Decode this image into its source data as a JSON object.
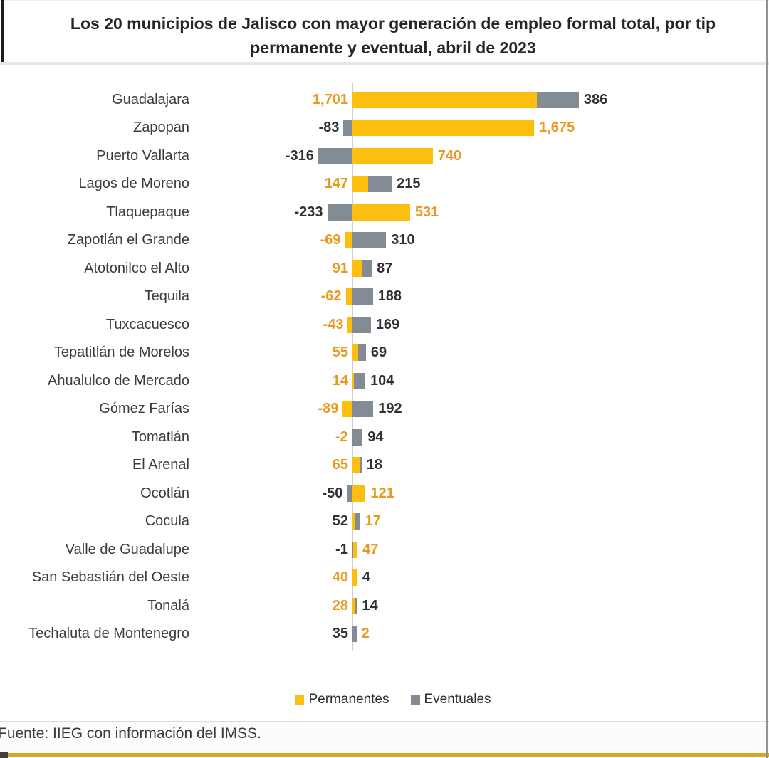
{
  "title": {
    "line1": "Los 20 municipios de Jalisco con mayor generación de empleo formal total, por tip",
    "line2": "permanente y eventual, abril de 2023"
  },
  "colors": {
    "permanentes": "#fcbf0f",
    "eventuales": "#838b94",
    "label_permanentes": "#e9991d",
    "label_eventuales": "#303036"
  },
  "legend": [
    {
      "label": "Permanentes",
      "series": "P",
      "color": "#fcbf0f"
    },
    {
      "label": "Eventuales",
      "series": "E",
      "color": "#838b94"
    }
  ],
  "footer": {
    "source": "Fuente: IIEG con información del IMSS."
  },
  "chart_data": {
    "type": "bar",
    "orientation": "horizontal",
    "stacked": true,
    "grid": false,
    "legend_position": "bottom",
    "series_names": [
      "Permanentes",
      "Eventuales"
    ],
    "rows": [
      {
        "name": "Guadalajara",
        "permanentes": 1701,
        "eventuales": 386,
        "left": {
          "text": "1,701",
          "series": "P"
        },
        "right": {
          "text": "386",
          "series": "E"
        }
      },
      {
        "name": "Zapopan",
        "permanentes": 1675,
        "eventuales": -83,
        "left": {
          "text": "-83",
          "series": "E"
        },
        "right": {
          "text": "1,675",
          "series": "P"
        }
      },
      {
        "name": "Puerto Vallarta",
        "permanentes": 740,
        "eventuales": -316,
        "left": {
          "text": "-316",
          "series": "E"
        },
        "right": {
          "text": "740",
          "series": "P"
        }
      },
      {
        "name": "Lagos de Moreno",
        "permanentes": 147,
        "eventuales": 215,
        "left": {
          "text": "147",
          "series": "P"
        },
        "right": {
          "text": "215",
          "series": "E"
        }
      },
      {
        "name": "Tlaquepaque",
        "permanentes": 531,
        "eventuales": -233,
        "left": {
          "text": "-233",
          "series": "E"
        },
        "right": {
          "text": "531",
          "series": "P"
        }
      },
      {
        "name": "Zapotlán el Grande",
        "permanentes": -69,
        "eventuales": 310,
        "left": {
          "text": "-69",
          "series": "P"
        },
        "right": {
          "text": "310",
          "series": "E"
        }
      },
      {
        "name": "Atotonilco el Alto",
        "permanentes": 91,
        "eventuales": 87,
        "left": {
          "text": "91",
          "series": "P"
        },
        "right": {
          "text": "87",
          "series": "E"
        }
      },
      {
        "name": "Tequila",
        "permanentes": -62,
        "eventuales": 188,
        "left": {
          "text": "-62",
          "series": "P"
        },
        "right": {
          "text": "188",
          "series": "E"
        }
      },
      {
        "name": "Tuxcacuesco",
        "permanentes": -43,
        "eventuales": 169,
        "left": {
          "text": "-43",
          "series": "P"
        },
        "right": {
          "text": "169",
          "series": "E"
        }
      },
      {
        "name": "Tepatitlán de Morelos",
        "permanentes": 55,
        "eventuales": 69,
        "left": {
          "text": "55",
          "series": "P"
        },
        "right": {
          "text": "69",
          "series": "E"
        }
      },
      {
        "name": "Ahualulco de Mercado",
        "permanentes": 14,
        "eventuales": 104,
        "left": {
          "text": "14",
          "series": "P"
        },
        "right": {
          "text": "104",
          "series": "E"
        }
      },
      {
        "name": "Gómez Farías",
        "permanentes": -89,
        "eventuales": 192,
        "left": {
          "text": "-89",
          "series": "P"
        },
        "right": {
          "text": "192",
          "series": "E"
        }
      },
      {
        "name": "Tomatlán",
        "permanentes": -2,
        "eventuales": 94,
        "left": {
          "text": "-2",
          "series": "P"
        },
        "right": {
          "text": "94",
          "series": "E"
        }
      },
      {
        "name": "El Arenal",
        "permanentes": 65,
        "eventuales": 18,
        "left": {
          "text": "65",
          "series": "P"
        },
        "right": {
          "text": "18",
          "series": "E"
        }
      },
      {
        "name": "Ocotlán",
        "permanentes": 121,
        "eventuales": -50,
        "left": {
          "text": "-50",
          "series": "E"
        },
        "right": {
          "text": "121",
          "series": "P"
        }
      },
      {
        "name": "Cocula",
        "permanentes": 17,
        "eventuales": 52,
        "left": {
          "text": "52",
          "series": "E"
        },
        "right": {
          "text": "17",
          "series": "P"
        }
      },
      {
        "name": "Valle de Guadalupe",
        "permanentes": 47,
        "eventuales": -1,
        "left": {
          "text": "-1",
          "series": "E"
        },
        "right": {
          "text": "47",
          "series": "P"
        }
      },
      {
        "name": "San Sebastián del Oeste",
        "permanentes": 40,
        "eventuales": 4,
        "left": {
          "text": "40",
          "series": "P"
        },
        "right": {
          "text": "4",
          "series": "E"
        }
      },
      {
        "name": "Tonalá",
        "permanentes": 28,
        "eventuales": 14,
        "left": {
          "text": "28",
          "series": "P"
        },
        "right": {
          "text": "14",
          "series": "E"
        }
      },
      {
        "name": "Techaluta de Montenegro",
        "permanentes": 2,
        "eventuales": 35,
        "left": {
          "text": "35",
          "series": "E"
        },
        "right": {
          "text": "2",
          "series": "P"
        }
      }
    ]
  }
}
